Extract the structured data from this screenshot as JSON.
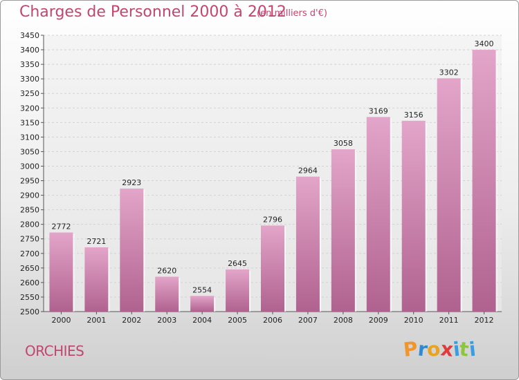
{
  "header": {
    "title": "Charges de Personnel 2000 à 2012",
    "subtitle": "(en milliers d'€)"
  },
  "footer": {
    "commune": "ORCHIES",
    "logo_letters": [
      "P",
      "r",
      "o",
      "x",
      "i",
      "t",
      "i"
    ],
    "logo_colors": [
      "#f0962a",
      "#2d8bd1",
      "#e8a321",
      "#e03a3a",
      "#3a9de0",
      "#8cc63f",
      "#3a9de0"
    ]
  },
  "chart_data": {
    "type": "bar",
    "title": "Charges de Personnel 2000 à 2012",
    "subtitle": "(en milliers d'€)",
    "categories": [
      "2000",
      "2001",
      "2002",
      "2003",
      "2004",
      "2005",
      "2006",
      "2007",
      "2008",
      "2009",
      "2010",
      "2011",
      "2012"
    ],
    "values": [
      2772,
      2721,
      2923,
      2620,
      2554,
      2645,
      2796,
      2964,
      3058,
      3169,
      3156,
      3302,
      3400
    ],
    "ylim": [
      2500,
      3450
    ],
    "ytick_step": 50,
    "grid": true,
    "bar_color": "#c4689b"
  }
}
